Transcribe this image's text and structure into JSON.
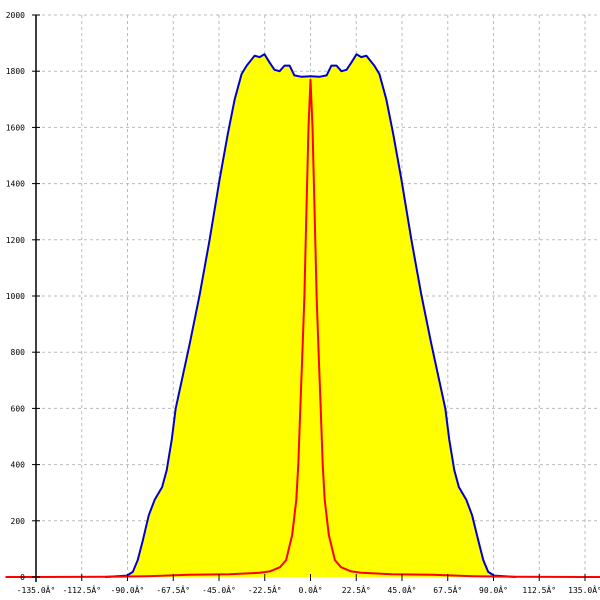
{
  "chart_data": {
    "type": "area",
    "title": "",
    "xlabel": "",
    "ylabel": "",
    "xlim": [
      -135,
      135
    ],
    "ylim": [
      0,
      2000
    ],
    "grid": true,
    "x_ticks": [
      -135,
      -112.5,
      -90,
      -67.5,
      -45,
      -22.5,
      0,
      22.5,
      45,
      67.5,
      90,
      112.5,
      135
    ],
    "x_tick_labels": [
      "-135.0Â°",
      "-112.5Â°",
      "-90.0Â°",
      "-67.5Â°",
      "-45.0Â°",
      "-22.5Â°",
      "0.0Â°",
      "22.5Â°",
      "45.0Â°",
      "67.5Â°",
      "90.0Â°",
      "112.5Â°",
      "135.0Â°"
    ],
    "y_ticks": [
      0,
      200,
      400,
      600,
      800,
      1000,
      1200,
      1400,
      1600,
      1800,
      2000
    ],
    "y_tick_labels": [
      "0",
      "200",
      "400",
      "600",
      "800",
      "1000",
      "1200",
      "1400",
      "1600",
      "1800",
      "2000"
    ],
    "series": [
      {
        "color": "#0000cc",
        "fill": "#ffff00",
        "points": [
          [
            -101,
            0
          ],
          [
            -90.3,
            5
          ],
          [
            -87.4,
            18
          ],
          [
            -85,
            60
          ],
          [
            -82.5,
            130
          ],
          [
            -79.5,
            220
          ],
          [
            -76.6,
            275
          ],
          [
            -73,
            320
          ],
          [
            -70.7,
            380
          ],
          [
            -68.2,
            490
          ],
          [
            -66.3,
            600
          ],
          [
            -63.3,
            700
          ],
          [
            -59.4,
            830
          ],
          [
            -54.5,
            1005
          ],
          [
            -49.6,
            1200
          ],
          [
            -44.7,
            1415
          ],
          [
            -40.7,
            1575
          ],
          [
            -37.3,
            1700
          ],
          [
            -33.9,
            1790
          ],
          [
            -31.4,
            1820
          ],
          [
            -27.5,
            1855
          ],
          [
            -25,
            1850
          ],
          [
            -22.6,
            1860
          ],
          [
            -20,
            1830
          ],
          [
            -17.7,
            1805
          ],
          [
            -15.2,
            1800
          ],
          [
            -12.8,
            1820
          ],
          [
            -10.3,
            1820
          ],
          [
            -7.9,
            1785
          ],
          [
            -4.4,
            1780
          ],
          [
            0,
            1782
          ],
          [
            4.4,
            1780
          ],
          [
            7.9,
            1785
          ],
          [
            10.3,
            1820
          ],
          [
            12.8,
            1820
          ],
          [
            15.2,
            1800
          ],
          [
            17.7,
            1805
          ],
          [
            20,
            1830
          ],
          [
            22.6,
            1860
          ],
          [
            25,
            1850
          ],
          [
            27.5,
            1855
          ],
          [
            31.4,
            1820
          ],
          [
            33.9,
            1790
          ],
          [
            37.3,
            1700
          ],
          [
            40.7,
            1575
          ],
          [
            44.7,
            1415
          ],
          [
            49.6,
            1200
          ],
          [
            54.5,
            1005
          ],
          [
            59.4,
            830
          ],
          [
            63.3,
            700
          ],
          [
            66.3,
            600
          ],
          [
            68.2,
            490
          ],
          [
            70.7,
            380
          ],
          [
            73,
            320
          ],
          [
            76.6,
            275
          ],
          [
            79.5,
            220
          ],
          [
            82.5,
            130
          ],
          [
            85,
            60
          ],
          [
            87.4,
            18
          ],
          [
            90.3,
            5
          ],
          [
            101,
            0
          ]
        ]
      },
      {
        "color": "#ff0000",
        "points": [
          [
            -150,
            0
          ],
          [
            -135,
            0
          ],
          [
            -100,
            1
          ],
          [
            -80,
            3
          ],
          [
            -60,
            8
          ],
          [
            -40,
            10
          ],
          [
            -25,
            15
          ],
          [
            -20,
            20
          ],
          [
            -15,
            35
          ],
          [
            -12,
            60
          ],
          [
            -9,
            150
          ],
          [
            -7,
            275
          ],
          [
            -6,
            400
          ],
          [
            -5,
            600
          ],
          [
            -4,
            800
          ],
          [
            -3,
            1000
          ],
          [
            -2,
            1300
          ],
          [
            -1,
            1600
          ],
          [
            0,
            1770
          ],
          [
            1,
            1600
          ],
          [
            2,
            1300
          ],
          [
            3,
            1000
          ],
          [
            4,
            800
          ],
          [
            5,
            600
          ],
          [
            6,
            400
          ],
          [
            7,
            275
          ],
          [
            9,
            150
          ],
          [
            12,
            60
          ],
          [
            15,
            35
          ],
          [
            20,
            20
          ],
          [
            25,
            15
          ],
          [
            40,
            10
          ],
          [
            60,
            8
          ],
          [
            80,
            3
          ],
          [
            100,
            1
          ],
          [
            135,
            0
          ],
          [
            150,
            0
          ]
        ]
      }
    ]
  }
}
